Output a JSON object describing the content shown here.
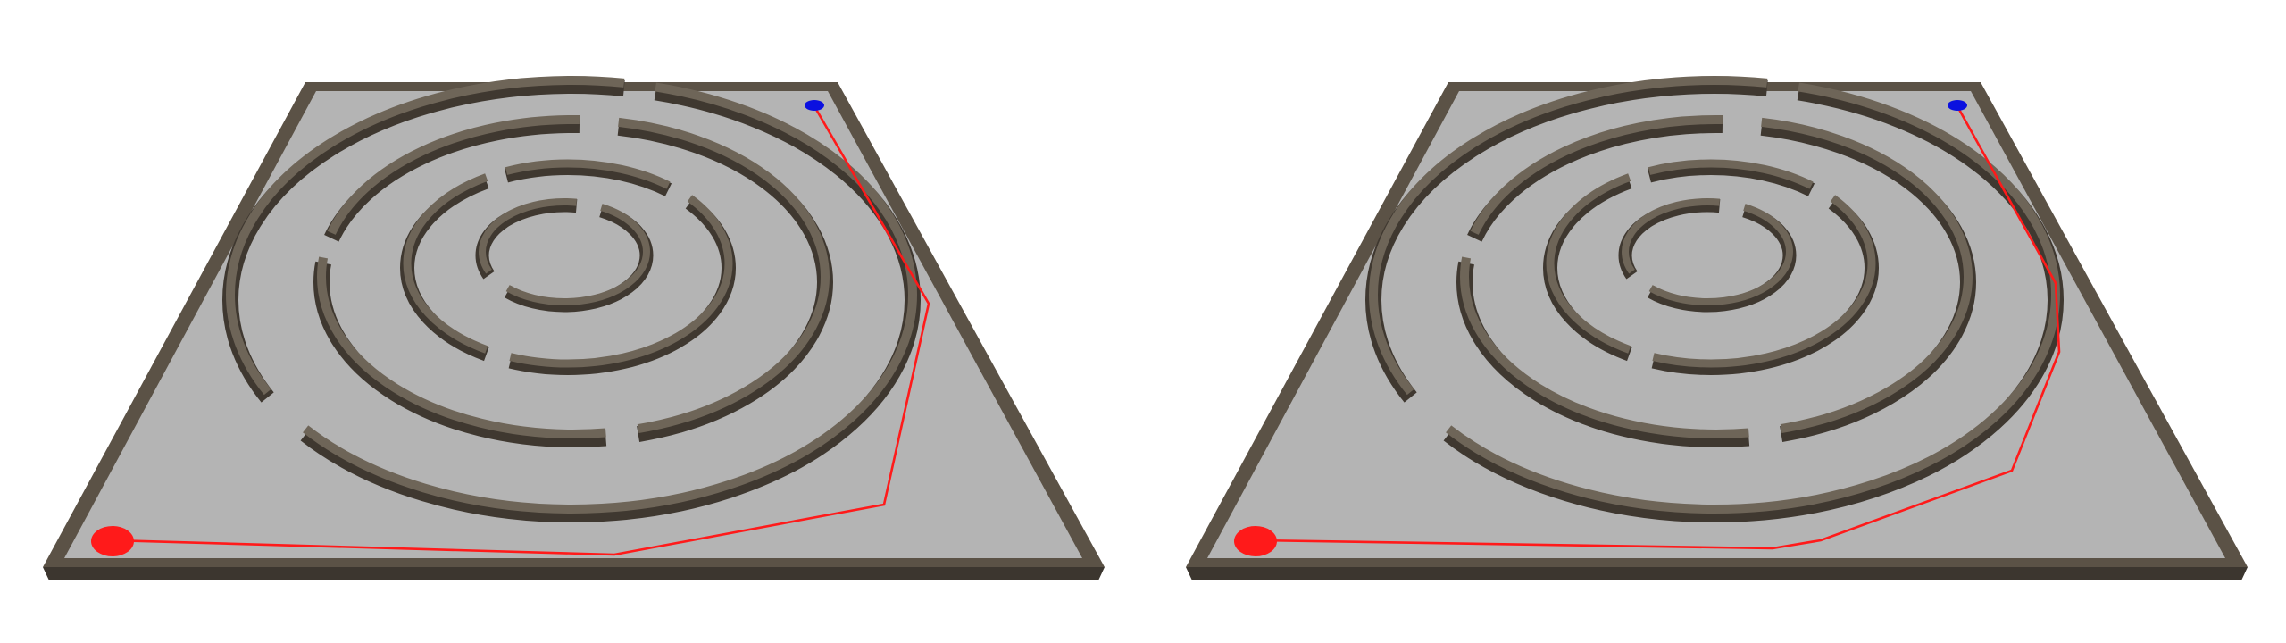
{
  "scene": {
    "panel_count": 2,
    "colors": {
      "background": "#ffffff",
      "floor": "#b4b4b4",
      "frame": "#5b5246",
      "wall": "#5a5246",
      "start_marker": "#ff1a1a",
      "goal_marker": "#0b10e0",
      "path": "#ff1a1a"
    }
  },
  "panels": [
    {
      "name": "left-maze",
      "start_marker": {
        "color": "#ff1a1a",
        "shape": "ellipse"
      },
      "goal_marker": {
        "color": "#0b10e0",
        "shape": "ellipse"
      },
      "path_color": "#ff1a1a"
    },
    {
      "name": "right-maze",
      "start_marker": {
        "color": "#ff1a1a",
        "shape": "ellipse"
      },
      "goal_marker": {
        "color": "#0b10e0",
        "shape": "ellipse"
      },
      "path_color": "#ff1a1a"
    }
  ]
}
